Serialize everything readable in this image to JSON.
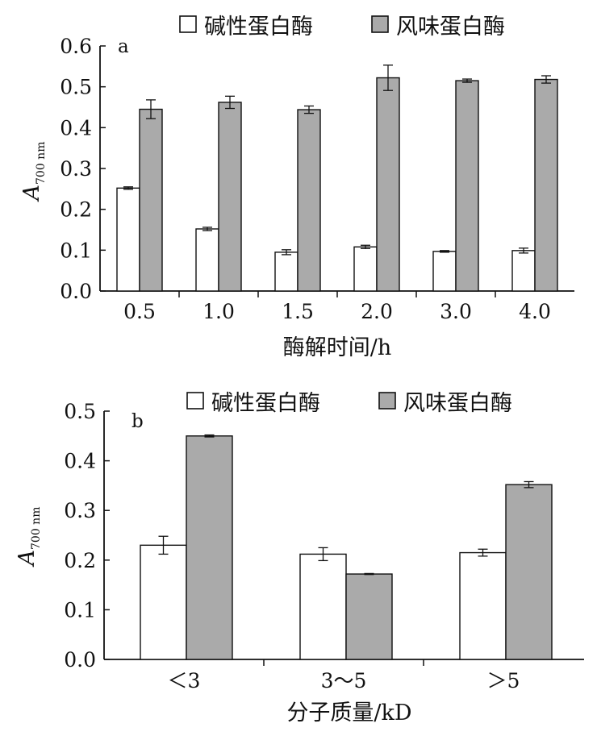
{
  "legend": {
    "series1": "碱性蛋白酶",
    "series2": "风味蛋白酶"
  },
  "colors": {
    "series1": "#ffffff",
    "series2": "#aaaaaa",
    "axis": "#111111"
  },
  "chart_data": [
    {
      "panel": "a",
      "type": "bar",
      "xlabel": "酶解时间/h",
      "ylabel": "A",
      "ylabel_sub": "700 nm",
      "ylim": [
        0,
        0.6
      ],
      "yticks": [
        "0.0",
        "0.1",
        "0.2",
        "0.3",
        "0.4",
        "0.5",
        "0.6"
      ],
      "categories": [
        "0.5",
        "1.0",
        "1.5",
        "2.0",
        "3.0",
        "4.0"
      ],
      "series": [
        {
          "name": "碱性蛋白酶",
          "values": [
            0.252,
            0.152,
            0.095,
            0.108,
            0.097,
            0.099
          ],
          "errors": [
            0.003,
            0.004,
            0.006,
            0.004,
            0.002,
            0.006
          ]
        },
        {
          "name": "风味蛋白酶",
          "values": [
            0.445,
            0.462,
            0.444,
            0.522,
            0.515,
            0.518
          ],
          "errors": [
            0.023,
            0.015,
            0.009,
            0.031,
            0.004,
            0.009
          ]
        }
      ]
    },
    {
      "panel": "b",
      "type": "bar",
      "xlabel": "分子质量/kD",
      "ylabel": "A",
      "ylabel_sub": "700 nm",
      "ylim": [
        0,
        0.5
      ],
      "yticks": [
        "0.0",
        "0.1",
        "0.2",
        "0.3",
        "0.4",
        "0.5"
      ],
      "categories": [
        "＜3",
        "3～5",
        "＞5"
      ],
      "series": [
        {
          "name": "碱性蛋白酶",
          "values": [
            0.23,
            0.212,
            0.215
          ],
          "errors": [
            0.018,
            0.013,
            0.007
          ]
        },
        {
          "name": "风味蛋白酶",
          "values": [
            0.45,
            0.172,
            0.352
          ],
          "errors": [
            0.002,
            0.001,
            0.006
          ]
        }
      ]
    }
  ]
}
